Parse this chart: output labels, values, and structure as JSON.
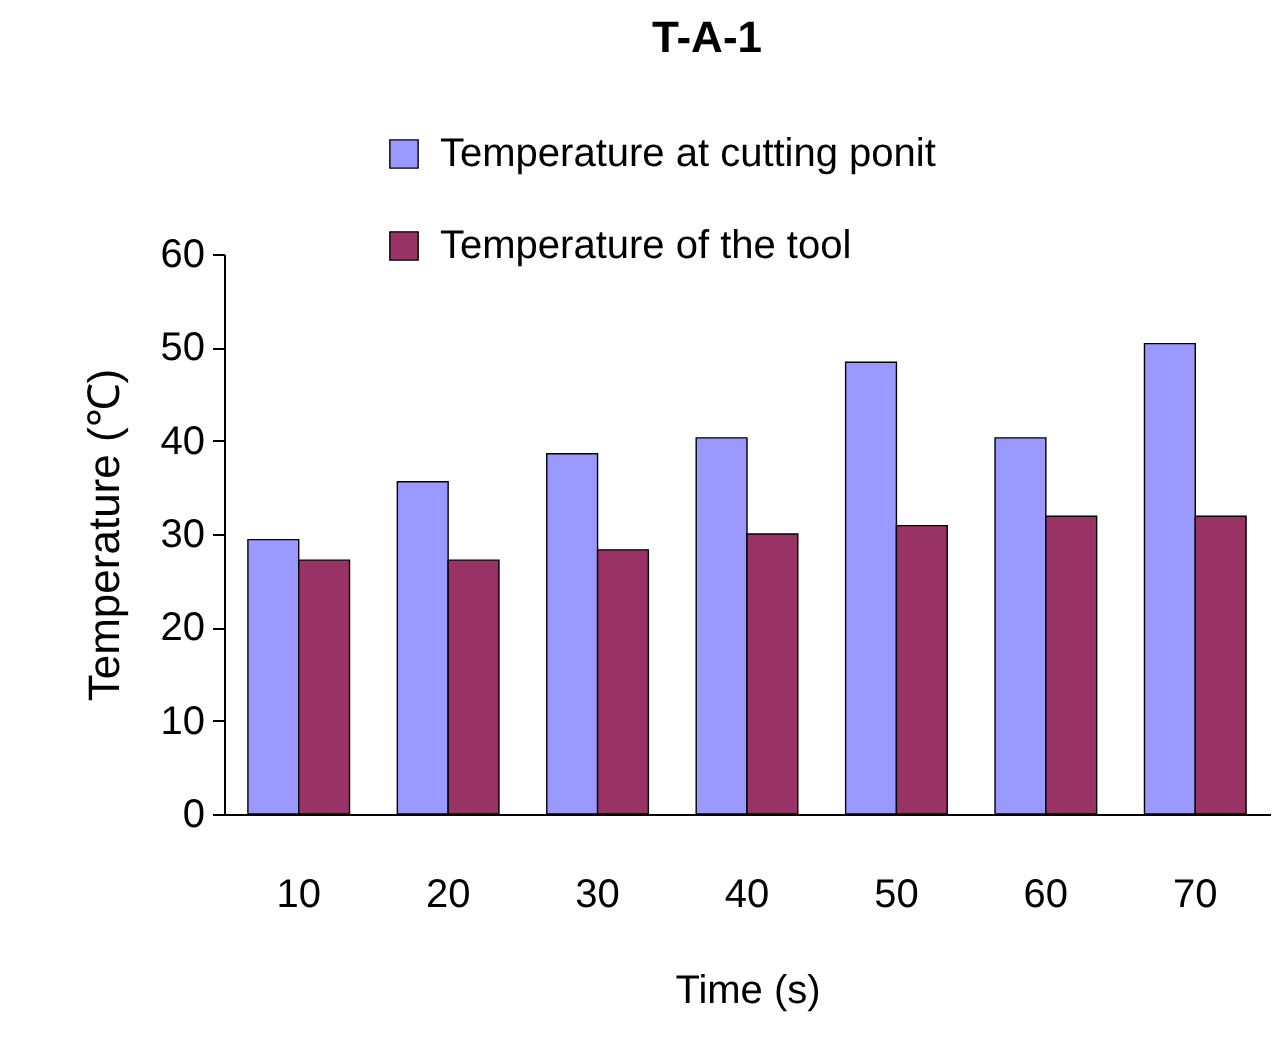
{
  "chart_data": {
    "type": "bar",
    "title": "T-A-1",
    "xlabel": "Time (s)",
    "ylabel": "Temperature (℃)",
    "categories": [
      "10",
      "20",
      "30",
      "40",
      "50",
      "60",
      "70"
    ],
    "series": [
      {
        "name": "Temperature at cutting ponit",
        "color": "#9999ff",
        "values": [
          29.4,
          35.6,
          38.6,
          40.3,
          48.4,
          40.3,
          50.4
        ]
      },
      {
        "name": "Temperature of the tool",
        "color": "#993366",
        "values": [
          27.2,
          27.2,
          28.3,
          30,
          30.9,
          31.9,
          31.9
        ]
      }
    ],
    "ylim": [
      0,
      60
    ],
    "yticks": [
      0,
      10,
      20,
      30,
      40,
      50,
      60
    ],
    "grid": false,
    "legend": "top"
  }
}
